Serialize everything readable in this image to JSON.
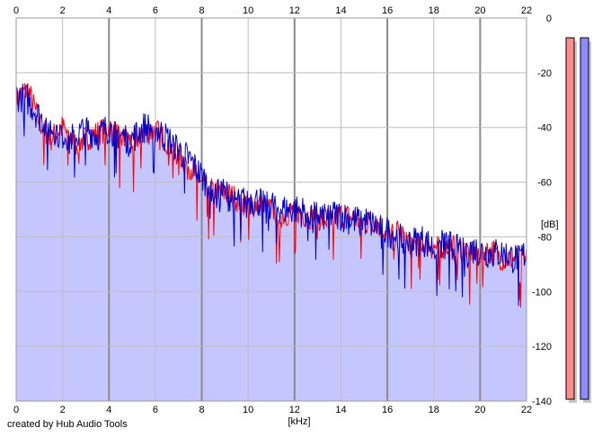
{
  "credit": "created by Hub Audio Tools",
  "colors": {
    "fill": "#c6c6ff",
    "left_channel": "#ff0000",
    "right_channel": "#0000cc",
    "left_meter": "#ff8c8c",
    "right_meter": "#8c8cff",
    "grid": "#bdbdbd",
    "major_grid": "#8a8a8a"
  },
  "chart_data": {
    "type": "line",
    "title": "",
    "xlabel": "[kHz]",
    "ylabel": "[dB]",
    "xlim": [
      0,
      22
    ],
    "ylim": [
      -140,
      0
    ],
    "x_ticks": [
      0,
      2,
      4,
      6,
      8,
      10,
      12,
      14,
      16,
      18,
      20,
      22
    ],
    "x_tick_labels": [
      "0",
      "2",
      "4",
      "6",
      "8",
      "10",
      "12",
      "14",
      "16",
      "18",
      "20",
      "22"
    ],
    "y_ticks": [
      0,
      -20,
      -40,
      -60,
      -80,
      -100,
      -120,
      -140
    ],
    "y_tick_labels": [
      "0",
      "-20",
      "-40",
      "-60",
      "-80",
      "-100",
      "-120",
      "-140"
    ],
    "grid": true,
    "series": [
      {
        "channel": "left",
        "x": [
          0,
          0.5,
          1,
          1.5,
          2,
          2.5,
          3,
          3.5,
          4,
          4.5,
          5,
          5.5,
          6,
          6.5,
          7,
          7.5,
          8,
          8.5,
          9,
          9.5,
          10,
          10.5,
          11,
          11.5,
          12,
          12.5,
          13,
          13.5,
          14,
          14.5,
          15,
          15.5,
          16,
          16.5,
          17,
          17.5,
          18,
          18.5,
          19,
          19.5,
          20,
          20.5,
          21,
          21.5,
          22
        ],
        "values": [
          -30,
          -26,
          -38,
          -44,
          -40,
          -46,
          -44,
          -42,
          -40,
          -44,
          -45,
          -42,
          -41,
          -45,
          -50,
          -54,
          -60,
          -63,
          -64,
          -66,
          -68,
          -68,
          -70,
          -72,
          -70,
          -72,
          -73,
          -74,
          -72,
          -73,
          -75,
          -74,
          -80,
          -78,
          -82,
          -82,
          -84,
          -83,
          -84,
          -85,
          -86,
          -85,
          -88,
          -88,
          -87
        ]
      },
      {
        "channel": "right",
        "x": [
          0,
          0.5,
          1,
          1.5,
          2,
          2.5,
          3,
          3.5,
          4,
          4.5,
          5,
          5.5,
          6,
          6.5,
          7,
          7.5,
          8,
          8.5,
          9,
          9.5,
          10,
          10.5,
          11,
          11.5,
          12,
          12.5,
          13,
          13.5,
          14,
          14.5,
          15,
          15.5,
          16,
          16.5,
          17,
          17.5,
          18,
          18.5,
          19,
          19.5,
          20,
          20.5,
          21,
          21.5,
          22
        ],
        "values": [
          -28,
          -30,
          -36,
          -40,
          -42,
          -44,
          -40,
          -43,
          -40,
          -43,
          -44,
          -40,
          -40,
          -44,
          -48,
          -52,
          -58,
          -62,
          -64,
          -67,
          -66,
          -67,
          -68,
          -70,
          -70,
          -71,
          -72,
          -72,
          -72,
          -74,
          -74,
          -76,
          -78,
          -80,
          -82,
          -81,
          -84,
          -82,
          -84,
          -84,
          -85,
          -86,
          -86,
          -88,
          -86
        ]
      }
    ],
    "level_meters": [
      {
        "channel": "left",
        "value_db": 0
      },
      {
        "channel": "right",
        "value_db": 0
      }
    ]
  }
}
